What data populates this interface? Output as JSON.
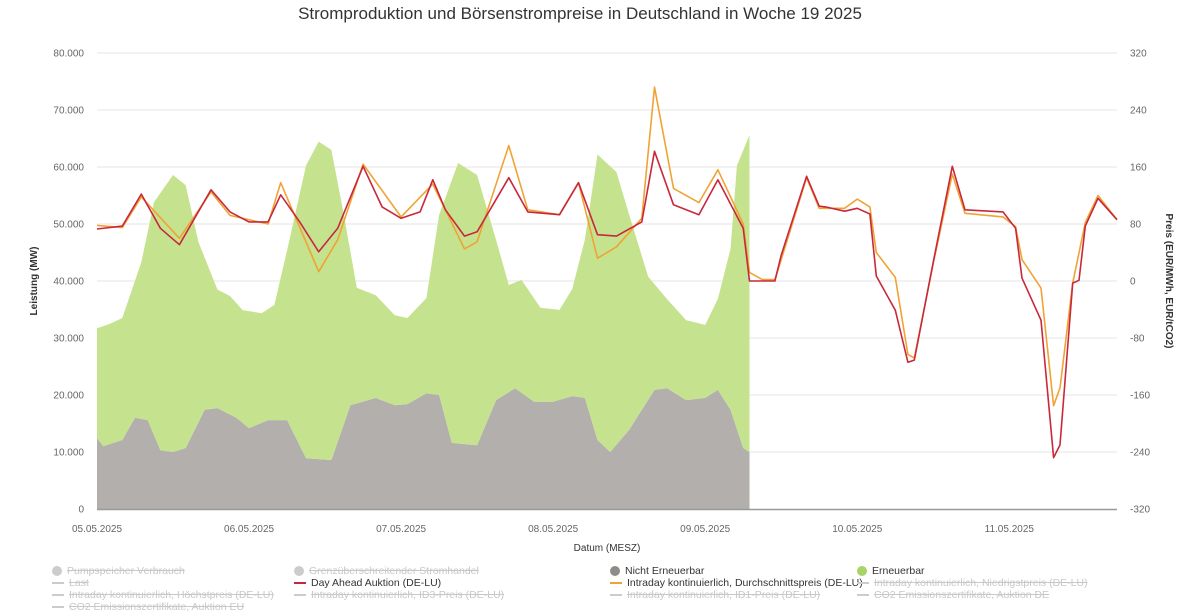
{
  "chart_data": {
    "type": "area+line",
    "title": "Stromproduktion und Börsenstrompreise in Deutschland in Woche 19 2025",
    "xlabel": "Datum (MESZ)",
    "ylabel_left": "Leistung (MW)",
    "ylabel_right": "Preis (EUR/MWh, EUR/tCO2)",
    "xlim": [
      "05.05.2025 00:00",
      "11.05.2025 17:00"
    ],
    "ylim_left": [
      0,
      80000
    ],
    "ylim_right": [
      -320,
      320
    ],
    "grid": true,
    "legend_placement": "bottom",
    "x_ticks": [
      {
        "label": "05.05.2025",
        "t": "05.05.2025 00:00"
      },
      {
        "label": "06.05.2025",
        "t": "06.05.2025 00:00"
      },
      {
        "label": "07.05.2025",
        "t": "07.05.2025 00:00"
      },
      {
        "label": "08.05.2025",
        "t": "08.05.2025 00:00"
      },
      {
        "label": "09.05.2025",
        "t": "09.05.2025 00:00"
      },
      {
        "label": "10.05.2025",
        "t": "10.05.2025 00:00"
      },
      {
        "label": "11.05.2025",
        "t": "11.05.2025 00:00"
      }
    ],
    "y_ticks_left": [
      {
        "label": "0",
        "v": 0
      },
      {
        "label": "10.000",
        "v": 10000
      },
      {
        "label": "20.000",
        "v": 20000
      },
      {
        "label": "30.000",
        "v": 30000
      },
      {
        "label": "40.000",
        "v": 40000
      },
      {
        "label": "50.000",
        "v": 50000
      },
      {
        "label": "60.000",
        "v": 60000
      },
      {
        "label": "70.000",
        "v": 70000
      },
      {
        "label": "80.000",
        "v": 80000
      }
    ],
    "y_ticks_right": [
      {
        "label": "-320",
        "v": -320
      },
      {
        "label": "-240",
        "v": -240
      },
      {
        "label": "-160",
        "v": -160
      },
      {
        "label": "-80",
        "v": -80
      },
      {
        "label": "0",
        "v": 0
      },
      {
        "label": "80",
        "v": 80
      },
      {
        "label": "160",
        "v": 160
      },
      {
        "label": "240",
        "v": 240
      },
      {
        "label": "320",
        "v": 320
      }
    ],
    "series": [
      {
        "name": "Nicht Erneuerbar",
        "kind": "area",
        "axis": "left",
        "stack": true,
        "color": "#b3afad",
        "points": [
          [
            "05.05.2025 00:00",
            12450
          ],
          [
            "05.05.2025 01:00",
            11000
          ],
          [
            "05.05.2025 04:00",
            12100
          ],
          [
            "05.05.2025 06:00",
            16000
          ],
          [
            "05.05.2025 08:00",
            15600
          ],
          [
            "05.05.2025 10:00",
            10300
          ],
          [
            "05.05.2025 12:00",
            10000
          ],
          [
            "05.05.2025 14:00",
            10700
          ],
          [
            "05.05.2025 17:00",
            17400
          ],
          [
            "05.05.2025 19:00",
            17700
          ],
          [
            "05.05.2025 22:00",
            16000
          ],
          [
            "06.05.2025 00:00",
            14200
          ],
          [
            "06.05.2025 03:00",
            15600
          ],
          [
            "06.05.2025 06:00",
            15600
          ],
          [
            "06.05.2025 09:00",
            8900
          ],
          [
            "06.05.2025 13:00",
            8600
          ],
          [
            "06.05.2025 16:00",
            18200
          ],
          [
            "06.05.2025 20:00",
            19500
          ],
          [
            "06.05.2025 23:00",
            18200
          ],
          [
            "07.05.2025 01:00",
            18400
          ],
          [
            "07.05.2025 04:00",
            20300
          ],
          [
            "07.05.2025 06:00",
            20000
          ],
          [
            "07.05.2025 08:00",
            11600
          ],
          [
            "07.05.2025 12:00",
            11200
          ],
          [
            "07.05.2025 15:00",
            19100
          ],
          [
            "07.05.2025 18:00",
            21200
          ],
          [
            "07.05.2025 21:00",
            18800
          ],
          [
            "08.05.2025 00:00",
            18800
          ],
          [
            "08.05.2025 03:00",
            19800
          ],
          [
            "08.05.2025 05:00",
            19500
          ],
          [
            "08.05.2025 07:00",
            12100
          ],
          [
            "08.05.2025 09:00",
            10000
          ],
          [
            "08.05.2025 12:00",
            13900
          ],
          [
            "08.05.2025 16:00",
            20900
          ],
          [
            "08.05.2025 18:00",
            21200
          ],
          [
            "08.05.2025 21:00",
            19100
          ],
          [
            "09.05.2025 00:00",
            19500
          ],
          [
            "09.05.2025 02:00",
            20900
          ],
          [
            "09.05.2025 04:00",
            17400
          ],
          [
            "09.05.2025 06:00",
            10700
          ],
          [
            "09.05.2025 07:00",
            10000
          ]
        ]
      },
      {
        "name": "Erneuerbar",
        "kind": "area",
        "axis": "left",
        "stack": true,
        "color": "#c5e38f",
        "points": [
          [
            "05.05.2025 00:00",
            19250
          ],
          [
            "05.05.2025 02:00",
            21100
          ],
          [
            "05.05.2025 04:00",
            21400
          ],
          [
            "05.05.2025 07:00",
            27500
          ],
          [
            "05.05.2025 09:00",
            40900
          ],
          [
            "05.05.2025 12:00",
            48600
          ],
          [
            "05.05.2025 14:00",
            46100
          ],
          [
            "05.05.2025 16:00",
            31700
          ],
          [
            "05.05.2025 19:00",
            20800
          ],
          [
            "05.05.2025 21:00",
            20800
          ],
          [
            "05.05.2025 23:00",
            19800
          ],
          [
            "06.05.2025 02:00",
            19200
          ],
          [
            "06.05.2025 04:00",
            20200
          ],
          [
            "06.05.2025 06:00",
            29800
          ],
          [
            "06.05.2025 09:00",
            51400
          ],
          [
            "06.05.2025 11:00",
            55700
          ],
          [
            "06.05.2025 13:00",
            54400
          ],
          [
            "06.05.2025 15:00",
            36400
          ],
          [
            "06.05.2025 17:00",
            20300
          ],
          [
            "06.05.2025 20:00",
            18000
          ],
          [
            "06.05.2025 23:00",
            15800
          ],
          [
            "07.05.2025 01:00",
            15100
          ],
          [
            "07.05.2025 04:00",
            16700
          ],
          [
            "07.05.2025 06:00",
            31600
          ],
          [
            "07.05.2025 09:00",
            49200
          ],
          [
            "07.05.2025 12:00",
            47400
          ],
          [
            "07.05.2025 15:00",
            28100
          ],
          [
            "07.05.2025 17:00",
            18800
          ],
          [
            "07.05.2025 19:00",
            19800
          ],
          [
            "07.05.2025 22:00",
            16500
          ],
          [
            "08.05.2025 01:00",
            15800
          ],
          [
            "08.05.2025 03:00",
            18800
          ],
          [
            "08.05.2025 05:00",
            27700
          ],
          [
            "08.05.2025 07:00",
            50100
          ],
          [
            "08.05.2025 10:00",
            47800
          ],
          [
            "08.05.2025 12:00",
            37700
          ],
          [
            "08.05.2025 15:00",
            21600
          ],
          [
            "08.05.2025 18:00",
            15600
          ],
          [
            "08.05.2025 21:00",
            14000
          ],
          [
            "09.05.2025 00:00",
            12800
          ],
          [
            "09.05.2025 02:00",
            16000
          ],
          [
            "09.05.2025 04:00",
            28200
          ],
          [
            "09.05.2025 05:00",
            46200
          ],
          [
            "09.05.2025 07:00",
            55600
          ]
        ]
      },
      {
        "name": "Day Ahead Auktion (DE-LU)",
        "kind": "line",
        "axis": "right",
        "color": "#c8283c",
        "points": [
          [
            "05.05.2025 00:00",
            73
          ],
          [
            "05.05.2025 04:00",
            77
          ],
          [
            "05.05.2025 07:00",
            122
          ],
          [
            "05.05.2025 10:00",
            74
          ],
          [
            "05.05.2025 13:00",
            51
          ],
          [
            "05.05.2025 18:00",
            128
          ],
          [
            "05.05.2025 21:00",
            97
          ],
          [
            "06.05.2025 00:00",
            83
          ],
          [
            "06.05.2025 03:00",
            83
          ],
          [
            "06.05.2025 05:00",
            121
          ],
          [
            "06.05.2025 08:00",
            83
          ],
          [
            "06.05.2025 11:00",
            41
          ],
          [
            "06.05.2025 14:00",
            74
          ],
          [
            "06.05.2025 18:00",
            161
          ],
          [
            "06.05.2025 21:00",
            104
          ],
          [
            "07.05.2025 00:00",
            88
          ],
          [
            "07.05.2025 03:00",
            97
          ],
          [
            "07.05.2025 05:00",
            142
          ],
          [
            "07.05.2025 07:00",
            100
          ],
          [
            "07.05.2025 10:00",
            63
          ],
          [
            "07.05.2025 12:00",
            69
          ],
          [
            "07.05.2025 17:00",
            145
          ],
          [
            "07.05.2025 20:00",
            97
          ],
          [
            "08.05.2025 01:00",
            93
          ],
          [
            "08.05.2025 04:00",
            138
          ],
          [
            "08.05.2025 07:00",
            65
          ],
          [
            "08.05.2025 10:00",
            63
          ],
          [
            "08.05.2025 14:00",
            83
          ],
          [
            "08.05.2025 16:00",
            182
          ],
          [
            "08.05.2025 19:00",
            107
          ],
          [
            "08.05.2025 23:00",
            93
          ],
          [
            "09.05.2025 02:00",
            142
          ],
          [
            "09.05.2025 06:00",
            74
          ],
          [
            "09.05.2025 07:00",
            0
          ],
          [
            "09.05.2025 11:00",
            0
          ],
          [
            "09.05.2025 12:00",
            36
          ],
          [
            "09.05.2025 16:00",
            147
          ],
          [
            "09.05.2025 18:00",
            105
          ],
          [
            "09.05.2025 19:00",
            104
          ],
          [
            "09.05.2025 22:00",
            98
          ],
          [
            "10.05.2025 00:00",
            102
          ],
          [
            "10.05.2025 02:00",
            94
          ],
          [
            "10.05.2025 03:00",
            7
          ],
          [
            "10.05.2025 06:00",
            -41
          ],
          [
            "10.05.2025 08:00",
            -114
          ],
          [
            "10.05.2025 09:00",
            -111
          ],
          [
            "10.05.2025 12:00",
            27
          ],
          [
            "10.05.2025 15:00",
            161
          ],
          [
            "10.05.2025 17:00",
            100
          ],
          [
            "10.05.2025 23:00",
            97
          ],
          [
            "11.05.2025 01:00",
            74
          ],
          [
            "11.05.2025 02:00",
            4
          ],
          [
            "11.05.2025 05:00",
            -55
          ],
          [
            "11.05.2025 07:00",
            -248
          ],
          [
            "11.05.2025 08:00",
            -230
          ],
          [
            "11.05.2025 10:00",
            -3
          ],
          [
            "11.05.2025 11:00",
            1
          ],
          [
            "11.05.2025 12:00",
            77
          ],
          [
            "11.05.2025 14:00",
            116
          ],
          [
            "11.05.2025 17:00",
            86
          ]
        ]
      },
      {
        "name": "Intraday kontinuierlich, Durchschnittspreis (DE-LU)",
        "kind": "line",
        "axis": "right",
        "color": "#f0a334",
        "points": [
          [
            "05.05.2025 00:00",
            78
          ],
          [
            "05.05.2025 04:00",
            75
          ],
          [
            "05.05.2025 07:00",
            118
          ],
          [
            "05.05.2025 13:00",
            60
          ],
          [
            "05.05.2025 18:00",
            125
          ],
          [
            "05.05.2025 21:00",
            92
          ],
          [
            "06.05.2025 03:00",
            80
          ],
          [
            "06.05.2025 05:00",
            138
          ],
          [
            "06.05.2025 11:00",
            13
          ],
          [
            "06.05.2025 14:00",
            58
          ],
          [
            "06.05.2025 18:00",
            164
          ],
          [
            "07.05.2025 00:00",
            90
          ],
          [
            "07.05.2025 05:00",
            136
          ],
          [
            "07.05.2025 10:00",
            45
          ],
          [
            "07.05.2025 12:00",
            55
          ],
          [
            "07.05.2025 17:00",
            190
          ],
          [
            "07.05.2025 20:00",
            100
          ],
          [
            "08.05.2025 01:00",
            93
          ],
          [
            "08.05.2025 04:00",
            138
          ],
          [
            "08.05.2025 07:00",
            32
          ],
          [
            "08.05.2025 10:00",
            48
          ],
          [
            "08.05.2025 14:00",
            88
          ],
          [
            "08.05.2025 16:00",
            272
          ],
          [
            "08.05.2025 19:00",
            130
          ],
          [
            "08.05.2025 23:00",
            110
          ],
          [
            "09.05.2025 02:00",
            156
          ],
          [
            "09.05.2025 06:00",
            80
          ],
          [
            "09.05.2025 07:00",
            12
          ],
          [
            "09.05.2025 09:00",
            2
          ],
          [
            "09.05.2025 11:00",
            2
          ],
          [
            "09.05.2025 12:00",
            30
          ],
          [
            "09.05.2025 16:00",
            145
          ],
          [
            "09.05.2025 18:00",
            102
          ],
          [
            "09.05.2025 22:00",
            102
          ],
          [
            "10.05.2025 00:00",
            115
          ],
          [
            "10.05.2025 02:00",
            104
          ],
          [
            "10.05.2025 03:00",
            40
          ],
          [
            "10.05.2025 06:00",
            5
          ],
          [
            "10.05.2025 08:00",
            -103
          ],
          [
            "10.05.2025 09:00",
            -108
          ],
          [
            "10.05.2025 12:00",
            25
          ],
          [
            "10.05.2025 15:00",
            150
          ],
          [
            "10.05.2025 17:00",
            95
          ],
          [
            "10.05.2025 23:00",
            90
          ],
          [
            "11.05.2025 01:00",
            76
          ],
          [
            "11.05.2025 02:00",
            30
          ],
          [
            "11.05.2025 05:00",
            -10
          ],
          [
            "11.05.2025 07:00",
            -175
          ],
          [
            "11.05.2025 08:00",
            -150
          ],
          [
            "11.05.2025 10:00",
            -3
          ],
          [
            "11.05.2025 12:00",
            82
          ],
          [
            "11.05.2025 14:00",
            120
          ],
          [
            "11.05.2025 17:00",
            86
          ]
        ]
      }
    ],
    "legend": [
      {
        "label": "Pumpspeicher Verbrauch",
        "symbol": "dot",
        "enabled": false,
        "color": "#cccccc"
      },
      {
        "label": "Last",
        "symbol": "line",
        "enabled": false,
        "color": "#cccccc"
      },
      {
        "label": "Intraday kontinuierlich, Höchstpreis (DE-LU)",
        "symbol": "line",
        "enabled": false,
        "color": "#cccccc"
      },
      {
        "label": "CO2 Emissionszertifikate, Auktion EU",
        "symbol": "line",
        "enabled": false,
        "color": "#cccccc"
      },
      {
        "label": "Grenzüberschreitender Stromhandel",
        "symbol": "dot",
        "enabled": false,
        "color": "#cccccc"
      },
      {
        "label": "Day Ahead Auktion (DE-LU)",
        "symbol": "line",
        "enabled": true,
        "color": "#c8283c"
      },
      {
        "label": "Intraday kontinuierlich, ID3-Preis (DE-LU)",
        "symbol": "line",
        "enabled": false,
        "color": "#cccccc"
      },
      {
        "label": "Nicht Erneuerbar",
        "symbol": "dot",
        "enabled": true,
        "color": "#8f8b89"
      },
      {
        "label": "Intraday kontinuierlich, Durchschnittspreis (DE-LU)",
        "symbol": "line",
        "enabled": true,
        "color": "#f0a334"
      },
      {
        "label": "Intraday kontinuierlich, ID1-Preis (DE-LU)",
        "symbol": "line",
        "enabled": false,
        "color": "#cccccc"
      },
      {
        "label": "Erneuerbar",
        "symbol": "dot",
        "enabled": true,
        "color": "#a7d465"
      },
      {
        "label": "Intraday kontinuierlich, Niedrigstpreis (DE-LU)",
        "symbol": "line",
        "enabled": false,
        "color": "#cccccc"
      },
      {
        "label": "CO2 Emissionszertifikate, Auktion DE",
        "symbol": "line",
        "enabled": false,
        "color": "#cccccc"
      }
    ]
  }
}
